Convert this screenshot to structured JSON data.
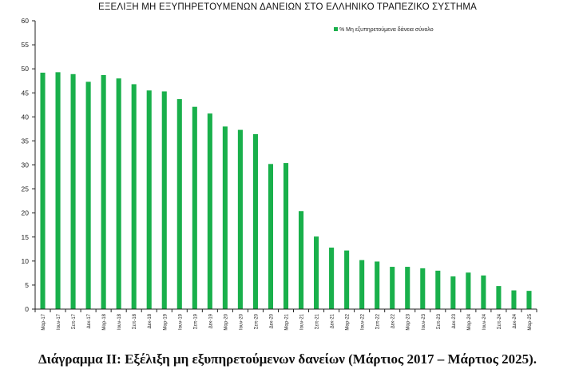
{
  "chart_data": {
    "type": "bar",
    "title": "ΕΞΕΛΙΞΗ ΜΗ ΕΞΥΠΗΡΕΤΟΥΜΕΝΩΝ ΔΑΝΕΙΩΝ ΣΤΟ ΕΛΛΗΝΙΚΟ ΤΡΑΠΕΖΙΚΟ ΣΥΣΤΗΜΑ",
    "caption": "Διάγραμμα ΙΙ: Εξέλιξη μη εξυπηρετούμενων δανείων (Μάρτιος 2017 – Μάρτιος 2025).",
    "legend": "top-right",
    "grid": false,
    "bar_color": "#19b04b",
    "ylim": [
      0,
      60
    ],
    "yticks": [
      0,
      5,
      10,
      15,
      20,
      25,
      30,
      35,
      40,
      45,
      50,
      55,
      60
    ],
    "categories": [
      "Μαρ-17",
      "Ιουν-17",
      "Σεπ-17",
      "Δεκ-17",
      "Μαρ-18",
      "Ιουν-18",
      "Σεπ-18",
      "Δεκ-18",
      "Μαρ-19",
      "Ιουν-19",
      "Σεπ-19",
      "Δεκ-19",
      "Μαρ-20",
      "Ιουν-20",
      "Σεπ-20",
      "Δεκ-20",
      "Μαρ-21",
      "Ιουν-21",
      "Σεπ-21",
      "Δεκ-21",
      "Μαρ-22",
      "Ιουν-22",
      "Σεπ-22",
      "Δεκ-22",
      "Μαρ-23",
      "Ιουν-23",
      "Σεπ-23",
      "Δεκ-23",
      "Μαρ-24",
      "Ιουν-24",
      "Σεπ-24",
      "Δεκ-24",
      "Μαρ-25"
    ],
    "series": [
      {
        "name": "% Μη εξυπηρετούμενα  δάνεια σύνολο",
        "values": [
          49.2,
          49.3,
          48.9,
          47.3,
          48.7,
          48.0,
          46.8,
          45.5,
          45.3,
          43.7,
          42.1,
          40.7,
          38.0,
          37.3,
          36.4,
          30.2,
          30.4,
          20.4,
          15.1,
          12.8,
          12.2,
          10.2,
          9.9,
          8.8,
          8.8,
          8.5,
          8.0,
          6.8,
          7.6,
          7.0,
          4.8,
          3.9,
          3.8
        ]
      }
    ]
  }
}
